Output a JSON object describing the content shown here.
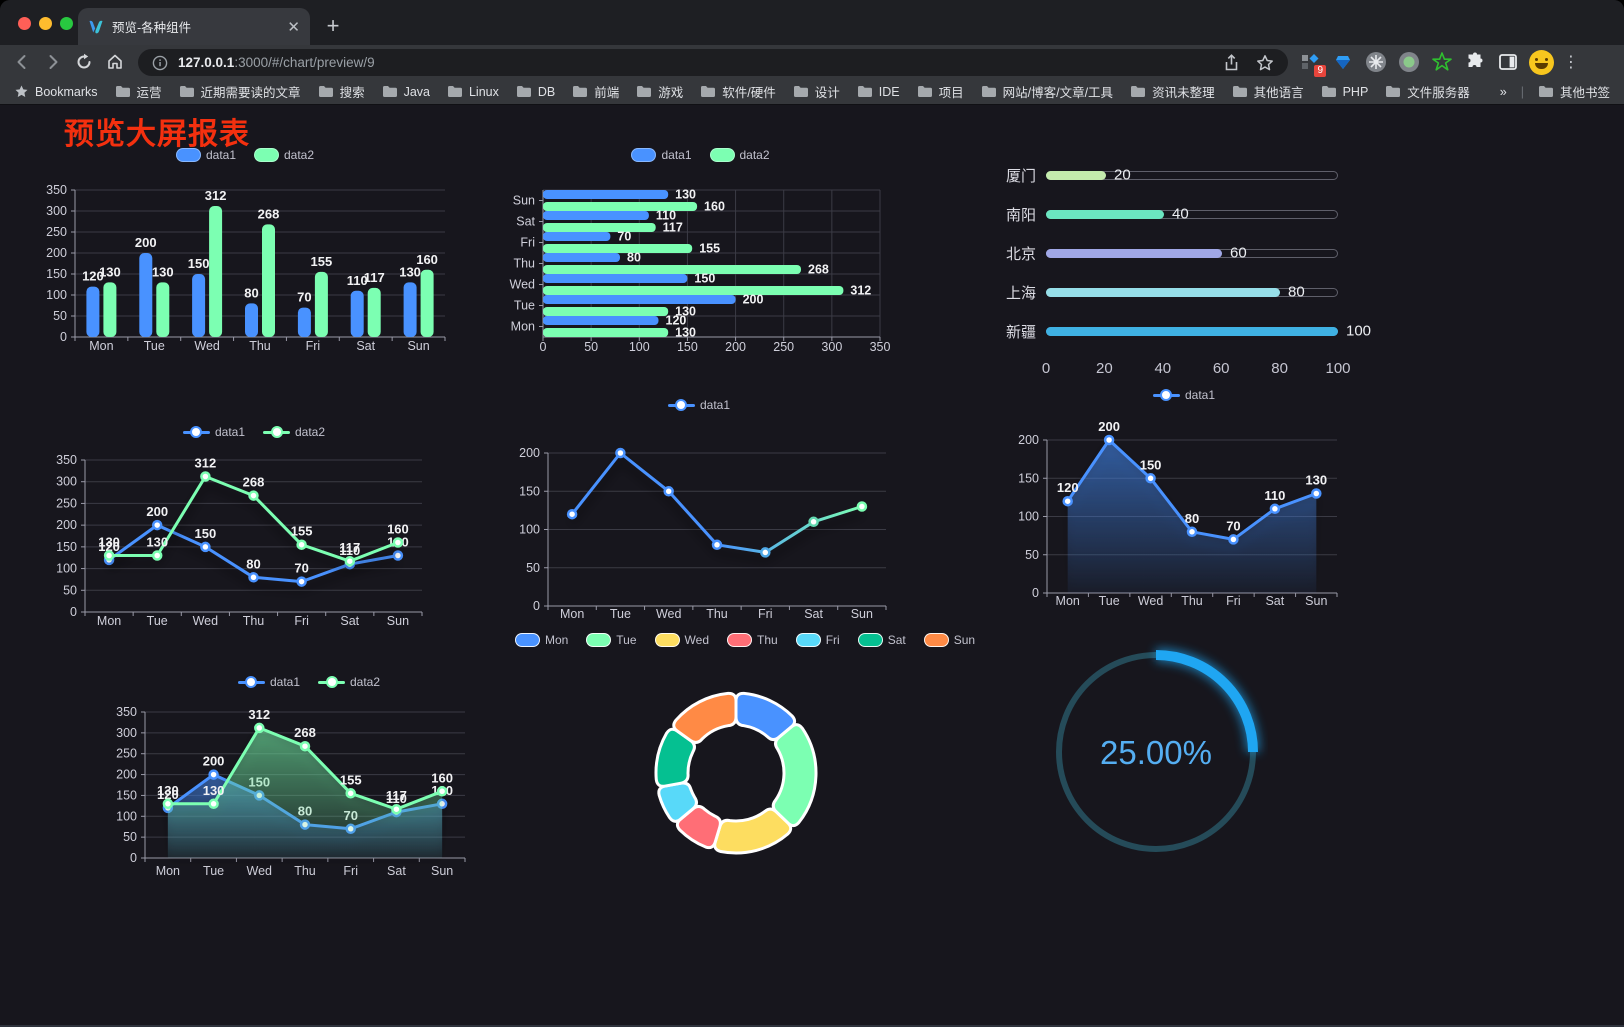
{
  "browser": {
    "tab_title": "预览-各种组件",
    "url_host": "127.0.0.1",
    "url_rest": ":3000/#/chart/preview/9",
    "bookmarks_root": "Bookmarks",
    "bookmarks": [
      "运营",
      "近期需要读的文章",
      "搜索",
      "Java",
      "Linux",
      "DB",
      "前端",
      "游戏",
      "软件/硬件",
      "设计",
      "IDE",
      "项目",
      "网站/博客/文章/工具",
      "资讯未整理",
      "其他语言",
      "PHP",
      "文件服务器"
    ],
    "overflow": "»",
    "other_bookmarks": "其他书签",
    "extension_badge": "9"
  },
  "page": {
    "title": "预览大屏报表",
    "title_color": "#f4300f"
  },
  "chart_data": [
    {
      "id": "bar-grouped-vertical",
      "type": "bar",
      "orientation": "vertical",
      "categories": [
        "Mon",
        "Tue",
        "Wed",
        "Thu",
        "Fri",
        "Sat",
        "Sun"
      ],
      "series": [
        {
          "name": "data1",
          "color": "#4992ff",
          "values": [
            120,
            200,
            150,
            80,
            70,
            110,
            130
          ]
        },
        {
          "name": "data2",
          "color": "#7cffb2",
          "values": [
            130,
            130,
            312,
            268,
            155,
            117,
            160
          ]
        }
      ],
      "ylim": [
        0,
        350
      ],
      "ytick_step": 50,
      "value_labels": true,
      "legend_position": "top",
      "grid": true
    },
    {
      "id": "bar-grouped-horizontal",
      "type": "bar",
      "orientation": "horizontal",
      "categories": [
        "Mon",
        "Tue",
        "Wed",
        "Thu",
        "Fri",
        "Sat",
        "Sun"
      ],
      "display_top_to_bottom": [
        "Sun",
        "Sat",
        "Fri",
        "Thu",
        "Wed",
        "Tue",
        "Mon"
      ],
      "series": [
        {
          "name": "data1",
          "color": "#4992ff",
          "values": [
            120,
            200,
            150,
            80,
            70,
            110,
            130
          ]
        },
        {
          "name": "data2",
          "color": "#7cffb2",
          "values": [
            130,
            130,
            312,
            268,
            155,
            117,
            160
          ]
        }
      ],
      "xlim": [
        0,
        350
      ],
      "xtick_step": 50,
      "value_labels": true,
      "legend_position": "top",
      "grid": true
    },
    {
      "id": "progress-bars",
      "type": "bar",
      "subtype": "progress",
      "categories": [
        "厦门",
        "南阳",
        "北京",
        "上海",
        "新疆"
      ],
      "values": [
        20,
        40,
        60,
        80,
        100
      ],
      "colors": [
        "#c4ebad",
        "#6be6c1",
        "#a0a7e6",
        "#96dee8",
        "#3fb1e3"
      ],
      "xlim": [
        0,
        100
      ],
      "xticks": [
        0,
        20,
        40,
        60,
        80,
        100
      ]
    },
    {
      "id": "line-two-series",
      "type": "line",
      "categories": [
        "Mon",
        "Tue",
        "Wed",
        "Thu",
        "Fri",
        "Sat",
        "Sun"
      ],
      "series": [
        {
          "name": "data1",
          "color": "#4992ff",
          "values": [
            120,
            200,
            150,
            80,
            70,
            110,
            130
          ]
        },
        {
          "name": "data2",
          "color": "#7cffb2",
          "values": [
            130,
            130,
            312,
            268,
            155,
            117,
            160
          ]
        }
      ],
      "ylim": [
        0,
        350
      ],
      "ytick_step": 50,
      "value_labels": true,
      "legend_position": "top",
      "grid": true
    },
    {
      "id": "line-gradient",
      "type": "line",
      "categories": [
        "Mon",
        "Tue",
        "Wed",
        "Thu",
        "Fri",
        "Sat",
        "Sun"
      ],
      "series": [
        {
          "name": "data1",
          "color": "#4992ff",
          "gradient": [
            "#4992ff",
            "#7cffb2"
          ],
          "point_colors": [
            "#4992ff",
            "#4992ff",
            "#4992ff",
            "#4992ff",
            "#4fa9e8",
            "#63d8b0",
            "#7cffb2"
          ],
          "values": [
            120,
            200,
            150,
            80,
            70,
            110,
            130
          ]
        }
      ],
      "ylim": [
        0,
        200
      ],
      "ytick_step": 50,
      "value_labels": false,
      "legend_position": "top",
      "grid": true
    },
    {
      "id": "line-area",
      "type": "line",
      "categories": [
        "Mon",
        "Tue",
        "Wed",
        "Thu",
        "Fri",
        "Sat",
        "Sun"
      ],
      "series": [
        {
          "name": "data1",
          "color": "#4992ff",
          "area": true,
          "values": [
            120,
            200,
            150,
            80,
            70,
            110,
            130
          ]
        }
      ],
      "ylim": [
        0,
        200
      ],
      "ytick_step": 50,
      "value_labels": true,
      "legend_position": "top",
      "grid": true
    },
    {
      "id": "line-two-areas",
      "type": "line",
      "categories": [
        "Mon",
        "Tue",
        "Wed",
        "Thu",
        "Fri",
        "Sat",
        "Sun"
      ],
      "series": [
        {
          "name": "data1",
          "color": "#4992ff",
          "area": true,
          "values": [
            120,
            200,
            150,
            80,
            70,
            110,
            130
          ]
        },
        {
          "name": "data2",
          "color": "#7cffb2",
          "area": true,
          "values": [
            130,
            130,
            312,
            268,
            155,
            117,
            160
          ]
        }
      ],
      "ylim": [
        0,
        350
      ],
      "ytick_step": 50,
      "value_labels": true,
      "legend_position": "top",
      "grid": true
    },
    {
      "id": "donut",
      "type": "pie",
      "categories": [
        "Mon",
        "Tue",
        "Wed",
        "Thu",
        "Fri",
        "Sat",
        "Sun"
      ],
      "values": [
        120,
        200,
        150,
        80,
        70,
        110,
        130
      ],
      "colors": [
        "#4992ff",
        "#7cffb2",
        "#fddd60",
        "#ff6e76",
        "#58d9f9",
        "#05c091",
        "#ff8a45"
      ],
      "border_color": "#ffffff",
      "legend_position": "top"
    },
    {
      "id": "gauge",
      "type": "gauge",
      "percent": 25,
      "label": "25.00%",
      "color": "#1fa6f2",
      "track_color": "#254b59",
      "text_color": "#55aef2"
    }
  ]
}
